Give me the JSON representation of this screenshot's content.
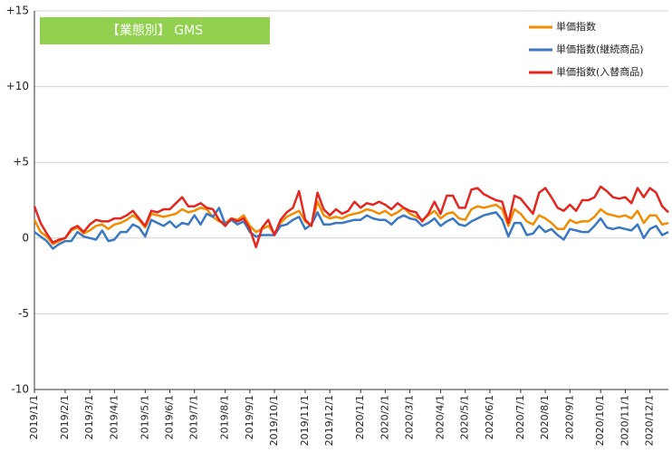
{
  "chart_data": {
    "type": "line",
    "title": "【業態別】 GMS",
    "title_color": "#92d050",
    "categories": [
      "2019/1/1",
      null,
      null,
      null,
      null,
      "2019/2/1",
      null,
      null,
      null,
      "2019/3/1",
      null,
      null,
      null,
      "2019/4/1",
      null,
      null,
      null,
      null,
      "2019/5/1",
      null,
      null,
      null,
      "2019/6/1",
      null,
      null,
      null,
      "2019/7/1",
      null,
      null,
      null,
      null,
      "2019/8/1",
      null,
      null,
      null,
      "2019/9/1",
      null,
      null,
      null,
      "2019/10/1",
      null,
      null,
      null,
      null,
      "2019/11/1",
      null,
      null,
      null,
      "2019/12/1",
      null,
      null,
      null,
      null,
      "2020/1/1",
      null,
      null,
      null,
      "2020/2/1",
      null,
      null,
      null,
      "2020/3/1",
      null,
      null,
      null,
      null,
      "2020/4/1",
      null,
      null,
      null,
      "2020/5/1",
      null,
      null,
      null,
      "2020/6/1",
      null,
      null,
      null,
      null,
      "2020/7/1",
      null,
      null,
      null,
      "2020/8/1",
      null,
      null,
      null,
      "2020/9/1",
      null,
      null,
      null,
      null,
      "2020/10/1",
      null,
      null,
      null,
      "2020/11/1",
      null,
      null,
      null,
      "2020/12/1",
      null,
      null,
      null
    ],
    "series": [
      {
        "name": "単価指数",
        "color": "#f28c00",
        "values": [
          1.2,
          0.4,
          0.1,
          -0.4,
          -0.2,
          0,
          0.5,
          0.7,
          0.3,
          0.5,
          0.8,
          0.9,
          0.6,
          0.9,
          1.0,
          1.2,
          1.5,
          1.2,
          0.7,
          1.6,
          1.5,
          1.4,
          1.5,
          1.6,
          1.9,
          1.7,
          1.8,
          2.0,
          1.9,
          1.4,
          1.1,
          1.0,
          1.3,
          1.2,
          1.5,
          0.8,
          0.4,
          0.6,
          0.8,
          0.3,
          1.0,
          1.4,
          1.6,
          1.8,
          1.1,
          0.8,
          2.4,
          1.5,
          1.3,
          1.4,
          1.3,
          1.5,
          1.6,
          1.7,
          1.9,
          1.8,
          1.6,
          1.8,
          1.5,
          1.7,
          2.0,
          1.6,
          1.4,
          1.2,
          1.5,
          1.8,
          1.3,
          1.6,
          1.7,
          1.3,
          1.2,
          1.9,
          2.1,
          2.0,
          2.1,
          2.2,
          1.9,
          0.8,
          1.9,
          1.6,
          1.1,
          0.9,
          1.5,
          1.3,
          1.0,
          0.6,
          0.6,
          1.2,
          1.0,
          1.1,
          1.1,
          1.4,
          1.9,
          1.6,
          1.5,
          1.4,
          1.5,
          1.3,
          1.8,
          1.0,
          1.5,
          1.5,
          0.9,
          1.0
        ]
      },
      {
        "name": "単価指数(継続商品)",
        "color": "#3a78c3",
        "values": [
          0.4,
          0.1,
          -0.2,
          -0.7,
          -0.4,
          -0.2,
          -0.2,
          0.4,
          0.1,
          0,
          -0.1,
          0.5,
          -0.2,
          -0.1,
          0.4,
          0.4,
          0.9,
          0.7,
          0.1,
          1.2,
          1.0,
          0.8,
          1.1,
          0.7,
          1.0,
          0.9,
          1.5,
          0.9,
          1.6,
          1.4,
          2.0,
          0.9,
          1.2,
          0.9,
          1.1,
          0.4,
          0.1,
          0.2,
          0.2,
          0.2,
          0.8,
          0.9,
          1.2,
          1.4,
          0.6,
          0.9,
          1.7,
          0.9,
          0.9,
          1.0,
          1.0,
          1.1,
          1.2,
          1.2,
          1.5,
          1.3,
          1.2,
          1.2,
          0.9,
          1.3,
          1.5,
          1.3,
          1.2,
          0.8,
          1.0,
          1.3,
          0.8,
          1.1,
          1.3,
          0.9,
          0.8,
          1.1,
          1.3,
          1.5,
          1.6,
          1.7,
          1.2,
          0.1,
          1.0,
          1.0,
          0.2,
          0.3,
          0.8,
          0.4,
          0.6,
          0.2,
          -0.1,
          0.6,
          0.5,
          0.4,
          0.4,
          0.8,
          1.3,
          0.7,
          0.6,
          0.7,
          0.6,
          0.5,
          0.9,
          0,
          0.6,
          0.8,
          0.2,
          0.4
        ]
      },
      {
        "name": "単価指数(入替商品)",
        "color": "#e3261f",
        "values": [
          2.1,
          1.0,
          0.3,
          -0.3,
          -0.1,
          0,
          0.6,
          0.8,
          0.4,
          0.9,
          1.2,
          1.1,
          1.1,
          1.3,
          1.3,
          1.5,
          1.8,
          1.3,
          0.8,
          1.8,
          1.7,
          1.9,
          1.9,
          2.3,
          2.7,
          2.1,
          2.1,
          2.3,
          2.0,
          1.9,
          1.2,
          0.8,
          1.3,
          1.1,
          1.3,
          0.6,
          -0.6,
          0.7,
          1.2,
          0.2,
          1.2,
          1.7,
          2.0,
          3.1,
          1.2,
          0.8,
          3.0,
          1.9,
          1.5,
          1.9,
          1.6,
          1.8,
          2.4,
          2.0,
          2.3,
          2.2,
          2.4,
          2.2,
          1.9,
          2.3,
          2.0,
          1.8,
          1.7,
          1.1,
          1.6,
          2.4,
          1.6,
          2.8,
          2.8,
          2.0,
          2.0,
          3.2,
          3.3,
          2.9,
          2.7,
          2.5,
          2.4,
          1.0,
          2.8,
          2.6,
          2.1,
          1.6,
          3.0,
          3.3,
          2.7,
          2.0,
          1.8,
          2.2,
          1.8,
          2.5,
          2.5,
          2.7,
          3.4,
          3.1,
          2.7,
          2.6,
          2.7,
          2.3,
          3.3,
          2.7,
          3.3,
          3.0,
          2.1,
          1.7
        ]
      }
    ],
    "ylim": [
      -10,
      15
    ],
    "yticks": [
      -10,
      -5,
      0,
      {
        "value": 5,
        "label": "+5"
      },
      {
        "value": 10,
        "label": "+10"
      },
      {
        "value": 15,
        "label": "+15"
      }
    ],
    "grid": true
  }
}
